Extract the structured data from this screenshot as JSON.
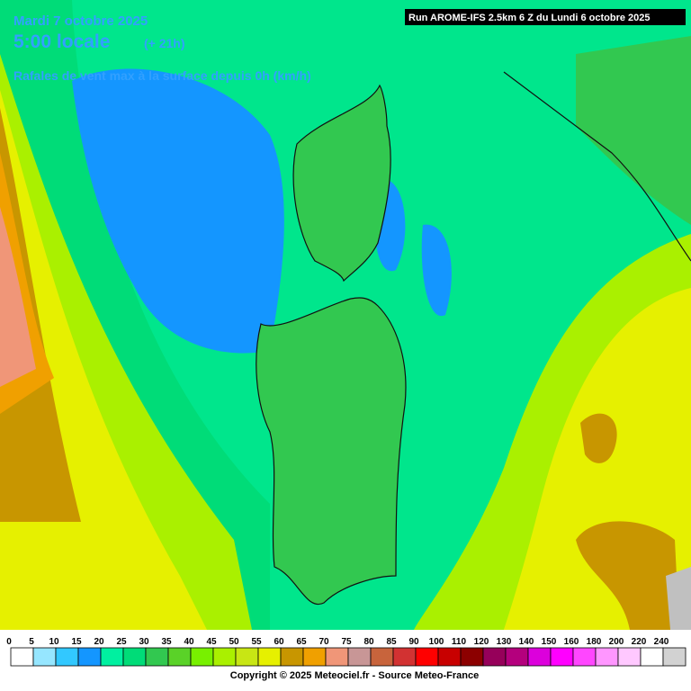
{
  "header": {
    "date": "Mardi 7 octobre 2025",
    "time": "5:00 locale",
    "offset": "(+ 21h)",
    "parameter": "Rafales de vent max à la surface depuis 0h (km/h)"
  },
  "run": "Run AROME-IFS 2.5km 6 Z du Lundi 6 octobre 2025",
  "legend": {
    "values": [
      0,
      5,
      10,
      15,
      20,
      25,
      30,
      35,
      40,
      45,
      50,
      55,
      60,
      65,
      70,
      75,
      80,
      85,
      90,
      100,
      110,
      120,
      130,
      140,
      150,
      160,
      180,
      200,
      220,
      240
    ],
    "colors": [
      "#ffffff",
      "#96e6ff",
      "#32c8ff",
      "#1496ff",
      "#00f0a0",
      "#00dc78",
      "#32c850",
      "#5ad228",
      "#78f000",
      "#aaf000",
      "#c8e614",
      "#e6f000",
      "#c89600",
      "#f0a000",
      "#f09678",
      "#c89696",
      "#c8643c",
      "#d23232",
      "#ff0000",
      "#c80000",
      "#8c0000",
      "#96005a",
      "#b4007d",
      "#dc00dc",
      "#ff00ff",
      "#ff46ff",
      "#ff96ff",
      "#ffc8ff",
      "#ffffff",
      "#d2d2d2"
    ]
  },
  "footer": "Copyright © 2025 Meteociel.fr - Source Meteo-France"
}
